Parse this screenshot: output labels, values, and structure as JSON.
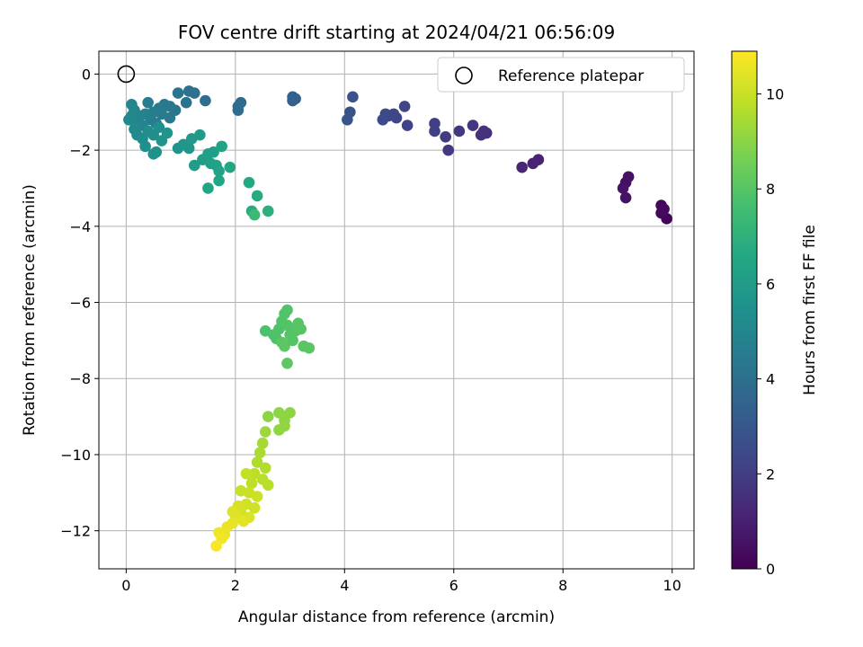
{
  "chart_data": {
    "type": "scatter",
    "title": "FOV centre drift starting at 2024/04/21 06:56:09",
    "xlabel": "Angular distance from reference (arcmin)",
    "ylabel": "Rotation from reference (arcmin)",
    "xlim": [
      -0.5,
      10.4
    ],
    "ylim": [
      -13.0,
      0.6
    ],
    "xticks": [
      0,
      2,
      4,
      6,
      8,
      10
    ],
    "yticks": [
      0,
      -2,
      -4,
      -6,
      -8,
      -10,
      -12
    ],
    "xtick_labels": [
      "0",
      "2",
      "4",
      "6",
      "8",
      "10"
    ],
    "ytick_labels": [
      "0",
      "−2",
      "−4",
      "−6",
      "−8",
      "−10",
      "−12"
    ],
    "grid": true,
    "colormap": "viridis",
    "colorbar": {
      "label": "Hours from first FF file",
      "range": [
        0,
        10.9
      ],
      "ticks": [
        0,
        2,
        4,
        6,
        8,
        10
      ],
      "tick_labels": [
        "0",
        "2",
        "4",
        "6",
        "8",
        "10"
      ]
    },
    "legend": {
      "position": "top-right",
      "entries": [
        {
          "label": "Reference platepar",
          "marker": "open-circle",
          "color": "#000000"
        }
      ]
    },
    "reference_point": {
      "x": 0,
      "y": 0
    },
    "points": [
      {
        "x": 9.9,
        "y": -3.8,
        "c": 0.1
      },
      {
        "x": 9.8,
        "y": -3.45,
        "c": 0.2
      },
      {
        "x": 9.8,
        "y": -3.65,
        "c": 0.25
      },
      {
        "x": 9.85,
        "y": -3.55,
        "c": 0.3
      },
      {
        "x": 9.15,
        "y": -2.85,
        "c": 0.45
      },
      {
        "x": 9.2,
        "y": -2.7,
        "c": 0.5
      },
      {
        "x": 9.15,
        "y": -3.25,
        "c": 0.55
      },
      {
        "x": 9.1,
        "y": -3.0,
        "c": 0.6
      },
      {
        "x": 7.55,
        "y": -2.25,
        "c": 1.05
      },
      {
        "x": 7.45,
        "y": -2.35,
        "c": 1.1
      },
      {
        "x": 7.25,
        "y": -2.45,
        "c": 1.15
      },
      {
        "x": 6.6,
        "y": -1.55,
        "c": 1.5
      },
      {
        "x": 6.55,
        "y": -1.5,
        "c": 1.55
      },
      {
        "x": 6.5,
        "y": -1.6,
        "c": 1.6
      },
      {
        "x": 6.35,
        "y": -1.35,
        "c": 1.7
      },
      {
        "x": 6.1,
        "y": -1.5,
        "c": 1.8
      },
      {
        "x": 5.9,
        "y": -2.0,
        "c": 1.85
      },
      {
        "x": 5.85,
        "y": -1.65,
        "c": 1.9
      },
      {
        "x": 5.65,
        "y": -1.3,
        "c": 2.0
      },
      {
        "x": 5.65,
        "y": -1.5,
        "c": 2.05
      },
      {
        "x": 5.15,
        "y": -1.35,
        "c": 2.2
      },
      {
        "x": 5.1,
        "y": -0.85,
        "c": 2.25
      },
      {
        "x": 4.95,
        "y": -1.15,
        "c": 2.3
      },
      {
        "x": 4.9,
        "y": -1.05,
        "c": 2.35
      },
      {
        "x": 4.8,
        "y": -1.1,
        "c": 2.4
      },
      {
        "x": 4.75,
        "y": -1.05,
        "c": 2.45
      },
      {
        "x": 4.7,
        "y": -1.2,
        "c": 2.5
      },
      {
        "x": 4.15,
        "y": -0.6,
        "c": 2.75
      },
      {
        "x": 4.1,
        "y": -1.0,
        "c": 2.8
      },
      {
        "x": 4.05,
        "y": -1.2,
        "c": 2.85
      },
      {
        "x": 3.1,
        "y": -0.65,
        "c": 3.3
      },
      {
        "x": 3.05,
        "y": -0.7,
        "c": 3.35
      },
      {
        "x": 3.05,
        "y": -0.6,
        "c": 3.4
      },
      {
        "x": 2.1,
        "y": -0.75,
        "c": 3.8
      },
      {
        "x": 2.05,
        "y": -0.85,
        "c": 3.85
      },
      {
        "x": 2.05,
        "y": -0.95,
        "c": 3.9
      },
      {
        "x": 1.45,
        "y": -0.7,
        "c": 4.0
      },
      {
        "x": 1.25,
        "y": -0.5,
        "c": 4.05
      },
      {
        "x": 1.15,
        "y": -0.45,
        "c": 4.1
      },
      {
        "x": 1.1,
        "y": -0.75,
        "c": 4.15
      },
      {
        "x": 0.95,
        "y": -0.5,
        "c": 4.2
      },
      {
        "x": 0.9,
        "y": -0.95,
        "c": 4.25
      },
      {
        "x": 0.8,
        "y": -0.85,
        "c": 4.3
      },
      {
        "x": 0.8,
        "y": -1.15,
        "c": 4.35
      },
      {
        "x": 0.7,
        "y": -0.8,
        "c": 4.4
      },
      {
        "x": 0.65,
        "y": -1.05,
        "c": 4.45
      },
      {
        "x": 0.6,
        "y": -0.9,
        "c": 4.5
      },
      {
        "x": 0.55,
        "y": -1.3,
        "c": 4.55
      },
      {
        "x": 0.5,
        "y": -1.0,
        "c": 4.6
      },
      {
        "x": 0.45,
        "y": -1.2,
        "c": 4.65
      },
      {
        "x": 0.4,
        "y": -0.75,
        "c": 4.7
      },
      {
        "x": 0.35,
        "y": -1.05,
        "c": 4.75
      },
      {
        "x": 0.3,
        "y": -1.35,
        "c": 4.8
      },
      {
        "x": 0.25,
        "y": -1.1,
        "c": 4.85
      },
      {
        "x": 0.2,
        "y": -1.25,
        "c": 4.9
      },
      {
        "x": 0.15,
        "y": -0.95,
        "c": 4.95
      },
      {
        "x": 0.1,
        "y": -0.8,
        "c": 5.0
      },
      {
        "x": 0.1,
        "y": -1.1,
        "c": 5.05
      },
      {
        "x": 0.05,
        "y": -1.2,
        "c": 5.1
      },
      {
        "x": 0.15,
        "y": -1.45,
        "c": 5.15
      },
      {
        "x": 0.2,
        "y": -1.6,
        "c": 5.2
      },
      {
        "x": 0.3,
        "y": -1.7,
        "c": 5.25
      },
      {
        "x": 0.4,
        "y": -1.5,
        "c": 5.3
      },
      {
        "x": 0.5,
        "y": -1.6,
        "c": 5.35
      },
      {
        "x": 0.6,
        "y": -1.4,
        "c": 5.4
      },
      {
        "x": 0.35,
        "y": -1.9,
        "c": 5.45
      },
      {
        "x": 0.5,
        "y": -2.1,
        "c": 5.5
      },
      {
        "x": 0.55,
        "y": -2.05,
        "c": 5.55
      },
      {
        "x": 0.65,
        "y": -1.75,
        "c": 5.6
      },
      {
        "x": 0.75,
        "y": -1.55,
        "c": 5.65
      },
      {
        "x": 0.95,
        "y": -1.95,
        "c": 5.7
      },
      {
        "x": 1.05,
        "y": -1.85,
        "c": 5.75
      },
      {
        "x": 1.15,
        "y": -1.95,
        "c": 5.8
      },
      {
        "x": 1.2,
        "y": -1.7,
        "c": 5.85
      },
      {
        "x": 1.35,
        "y": -1.6,
        "c": 5.9
      },
      {
        "x": 1.25,
        "y": -2.4,
        "c": 6.0
      },
      {
        "x": 1.4,
        "y": -2.25,
        "c": 6.05
      },
      {
        "x": 1.5,
        "y": -2.1,
        "c": 6.1
      },
      {
        "x": 1.55,
        "y": -2.35,
        "c": 6.15
      },
      {
        "x": 1.6,
        "y": -2.05,
        "c": 6.2
      },
      {
        "x": 1.65,
        "y": -2.4,
        "c": 6.25
      },
      {
        "x": 1.7,
        "y": -2.55,
        "c": 6.3
      },
      {
        "x": 1.75,
        "y": -1.9,
        "c": 6.35
      },
      {
        "x": 1.5,
        "y": -3.0,
        "c": 6.4
      },
      {
        "x": 1.7,
        "y": -2.8,
        "c": 6.45
      },
      {
        "x": 1.9,
        "y": -2.45,
        "c": 6.5
      },
      {
        "x": 2.25,
        "y": -2.85,
        "c": 6.6
      },
      {
        "x": 2.4,
        "y": -3.2,
        "c": 6.7
      },
      {
        "x": 2.3,
        "y": -3.6,
        "c": 6.8
      },
      {
        "x": 2.6,
        "y": -3.6,
        "c": 6.9
      },
      {
        "x": 2.35,
        "y": -3.7,
        "c": 7.4
      },
      {
        "x": 2.55,
        "y": -6.75,
        "c": 7.8
      },
      {
        "x": 2.7,
        "y": -6.85,
        "c": 7.82
      },
      {
        "x": 2.75,
        "y": -6.95,
        "c": 7.84
      },
      {
        "x": 2.8,
        "y": -6.7,
        "c": 7.86
      },
      {
        "x": 2.85,
        "y": -6.5,
        "c": 7.88
      },
      {
        "x": 2.9,
        "y": -6.3,
        "c": 7.9
      },
      {
        "x": 2.95,
        "y": -6.2,
        "c": 7.92
      },
      {
        "x": 2.95,
        "y": -6.6,
        "c": 7.94
      },
      {
        "x": 3.0,
        "y": -6.85,
        "c": 7.96
      },
      {
        "x": 3.05,
        "y": -7.0,
        "c": 7.98
      },
      {
        "x": 3.1,
        "y": -6.75,
        "c": 8.0
      },
      {
        "x": 3.15,
        "y": -6.55,
        "c": 8.02
      },
      {
        "x": 3.2,
        "y": -6.7,
        "c": 8.04
      },
      {
        "x": 3.25,
        "y": -7.15,
        "c": 8.06
      },
      {
        "x": 3.35,
        "y": -7.2,
        "c": 8.08
      },
      {
        "x": 2.9,
        "y": -7.15,
        "c": 8.1
      },
      {
        "x": 2.85,
        "y": -7.05,
        "c": 8.12
      },
      {
        "x": 2.95,
        "y": -7.6,
        "c": 8.15
      },
      {
        "x": 2.6,
        "y": -9.0,
        "c": 9.0
      },
      {
        "x": 2.8,
        "y": -8.9,
        "c": 9.02
      },
      {
        "x": 2.9,
        "y": -9.1,
        "c": 9.04
      },
      {
        "x": 3.0,
        "y": -8.9,
        "c": 9.06
      },
      {
        "x": 2.8,
        "y": -9.35,
        "c": 9.08
      },
      {
        "x": 2.9,
        "y": -9.25,
        "c": 9.1
      },
      {
        "x": 2.55,
        "y": -9.4,
        "c": 9.3
      },
      {
        "x": 2.5,
        "y": -9.7,
        "c": 9.4
      },
      {
        "x": 2.45,
        "y": -9.95,
        "c": 9.5
      },
      {
        "x": 2.4,
        "y": -10.2,
        "c": 9.6
      },
      {
        "x": 2.55,
        "y": -10.35,
        "c": 9.65
      },
      {
        "x": 2.5,
        "y": -10.65,
        "c": 9.7
      },
      {
        "x": 2.6,
        "y": -10.8,
        "c": 9.75
      },
      {
        "x": 2.35,
        "y": -10.5,
        "c": 9.8
      },
      {
        "x": 2.3,
        "y": -10.75,
        "c": 9.85
      },
      {
        "x": 2.2,
        "y": -10.5,
        "c": 9.9
      },
      {
        "x": 2.1,
        "y": -10.95,
        "c": 9.95
      },
      {
        "x": 2.25,
        "y": -11.0,
        "c": 10.0
      },
      {
        "x": 2.4,
        "y": -11.1,
        "c": 10.05
      },
      {
        "x": 2.35,
        "y": -11.4,
        "c": 10.1
      },
      {
        "x": 2.2,
        "y": -11.3,
        "c": 10.15
      },
      {
        "x": 2.1,
        "y": -11.5,
        "c": 10.2
      },
      {
        "x": 2.05,
        "y": -11.35,
        "c": 10.25
      },
      {
        "x": 2.25,
        "y": -11.65,
        "c": 10.3
      },
      {
        "x": 2.0,
        "y": -11.6,
        "c": 10.35
      },
      {
        "x": 1.95,
        "y": -11.5,
        "c": 10.4
      },
      {
        "x": 2.15,
        "y": -11.75,
        "c": 10.45
      },
      {
        "x": 1.95,
        "y": -11.8,
        "c": 10.5
      },
      {
        "x": 1.85,
        "y": -11.9,
        "c": 10.55
      },
      {
        "x": 1.8,
        "y": -12.1,
        "c": 10.6
      },
      {
        "x": 1.7,
        "y": -12.05,
        "c": 10.65
      },
      {
        "x": 1.75,
        "y": -12.2,
        "c": 10.7
      },
      {
        "x": 1.65,
        "y": -12.4,
        "c": 10.8
      }
    ]
  }
}
